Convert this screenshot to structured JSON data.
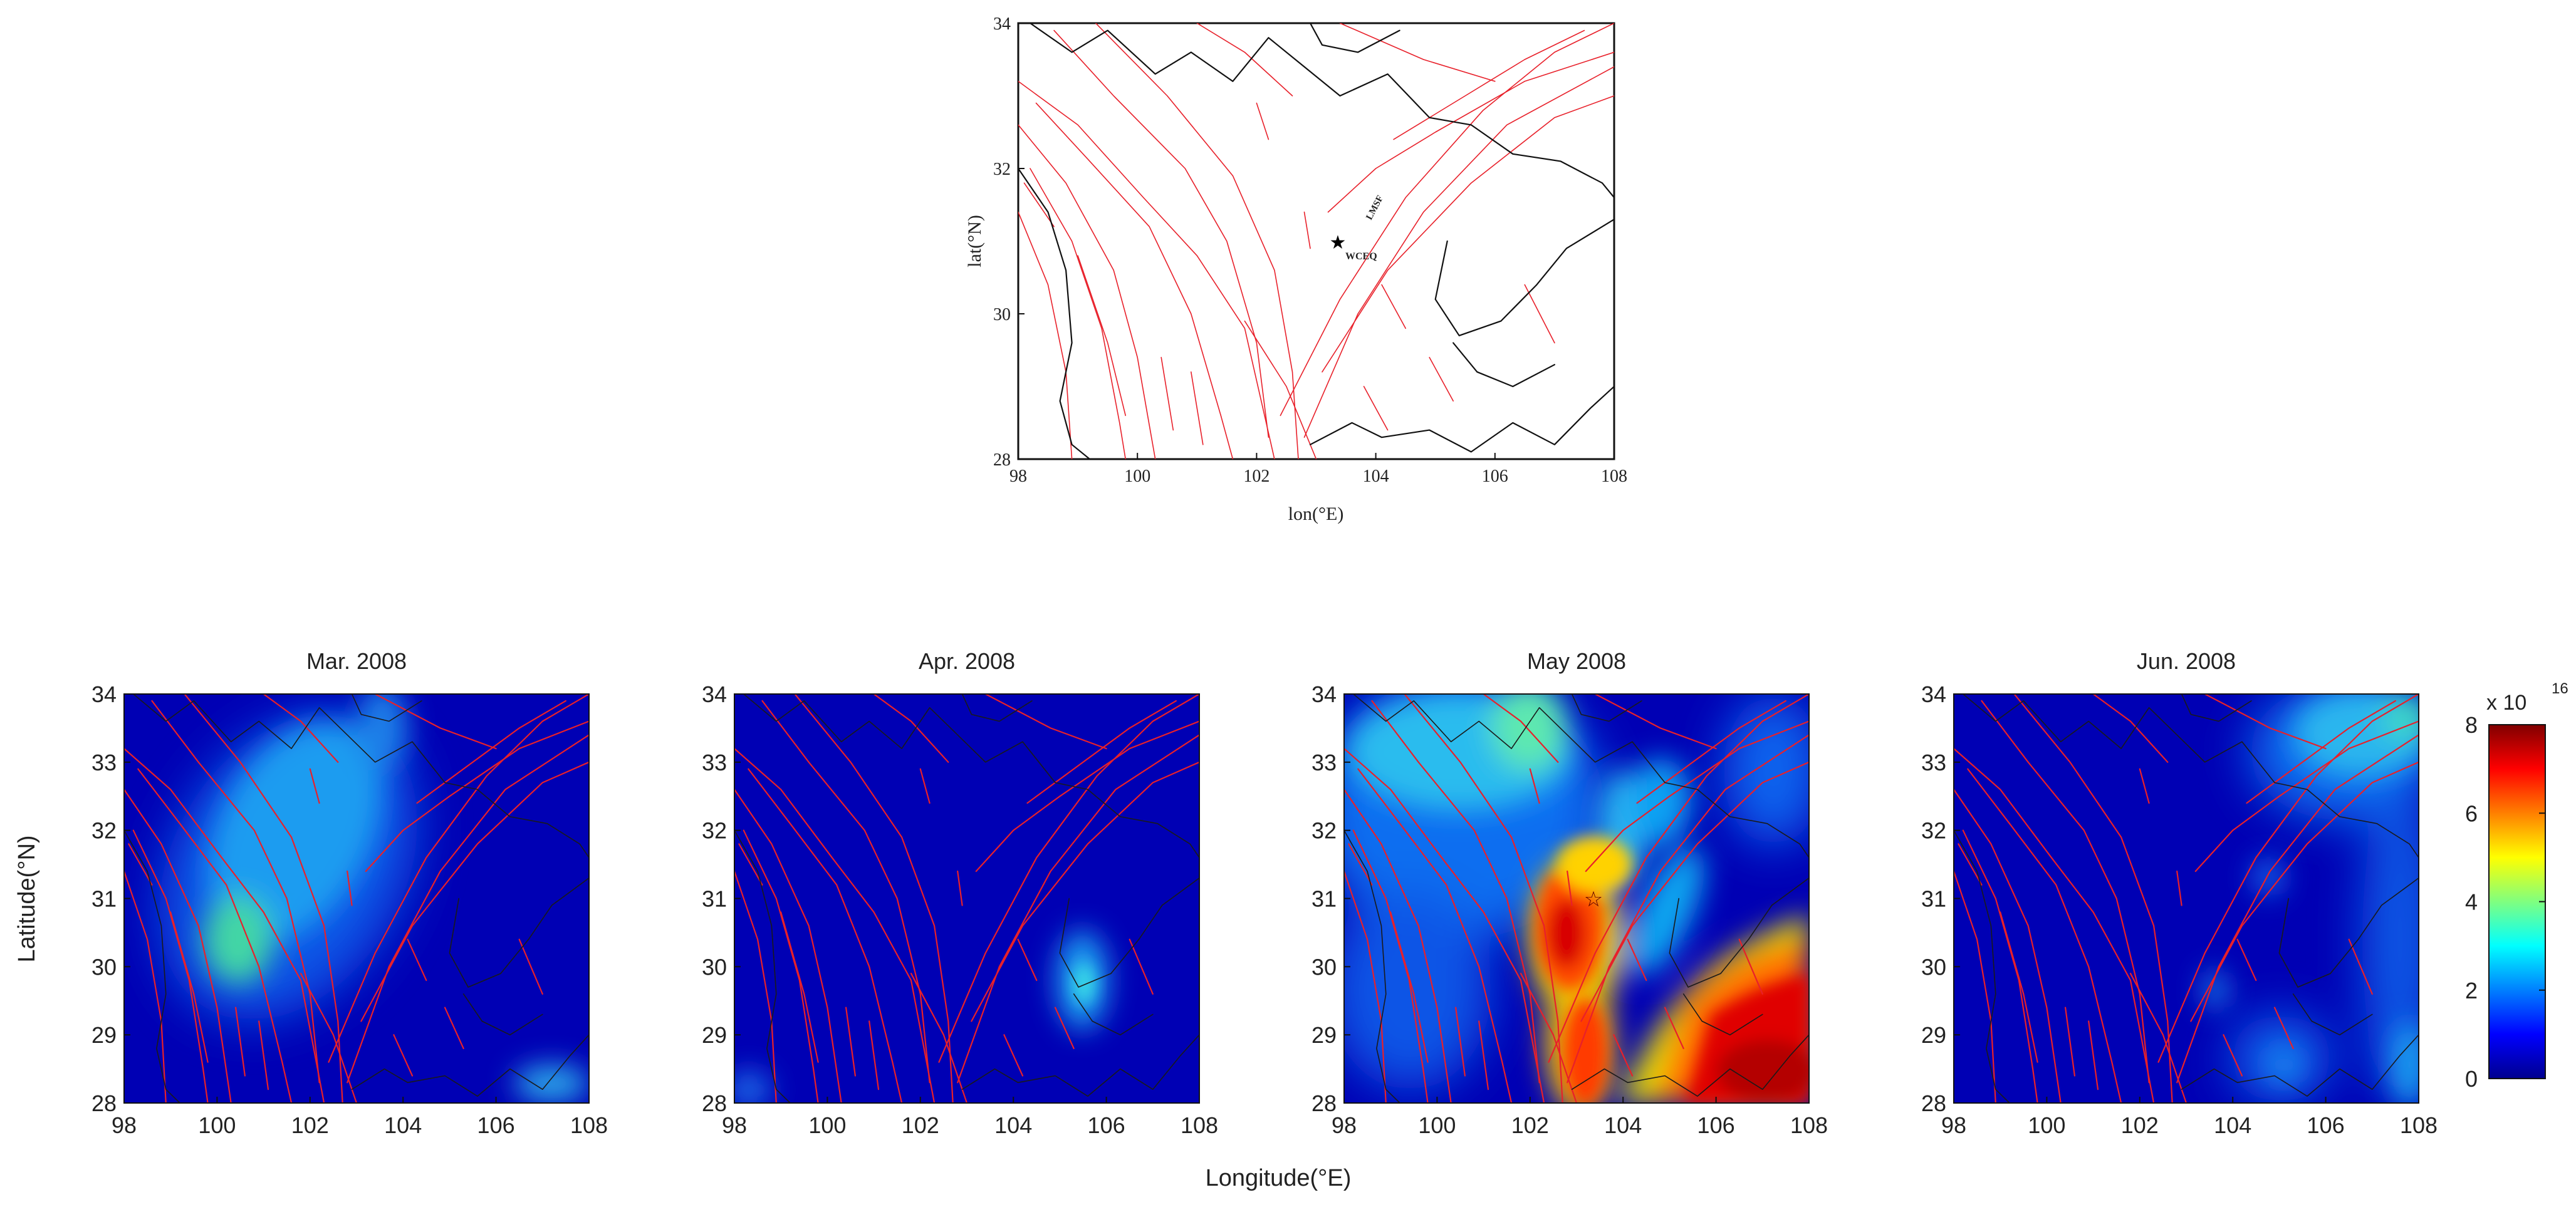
{
  "overview_map": {
    "x_ticks": [
      "98",
      "100",
      "102",
      "104",
      "106",
      "108"
    ],
    "y_ticks": [
      "28",
      "30",
      "32",
      "34"
    ],
    "xlabel": "lon(°E)",
    "ylabel": "lat(°N)",
    "fault_label": "LMSF",
    "epicenter_label": "WCEQ"
  },
  "panels": [
    {
      "title": "Mar. 2008"
    },
    {
      "title": "Apr. 2008"
    },
    {
      "title": "May 2008"
    },
    {
      "title": "Jun. 2008"
    }
  ],
  "panel_axes": {
    "x_ticks": [
      "98",
      "100",
      "102",
      "104",
      "106",
      "108"
    ],
    "y_ticks": [
      "28",
      "29",
      "30",
      "31",
      "32",
      "33",
      "34"
    ],
    "xlabel": "Longitude(°E)",
    "ylabel": "Latitude(°N)"
  },
  "colorbar": {
    "ticks": [
      "0",
      "2",
      "4",
      "6",
      "8"
    ],
    "scale_label": "x 10",
    "exponent": "16",
    "colormap": "jet",
    "range": [
      0,
      8
    ]
  },
  "colors": {
    "fault": "#e8202a",
    "border": "#111111",
    "background_low": "#0000b4"
  },
  "chart_data": {
    "type": "heatmap",
    "x_range": [
      98,
      108
    ],
    "y_range": [
      28,
      34
    ],
    "epicenter": {
      "lon": 103.4,
      "lat": 31.0
    },
    "colorbar_range": [
      0,
      8
    ],
    "frames": [
      "Mar. 2008",
      "Apr. 2008",
      "May 2008",
      "Jun. 2008"
    ]
  }
}
